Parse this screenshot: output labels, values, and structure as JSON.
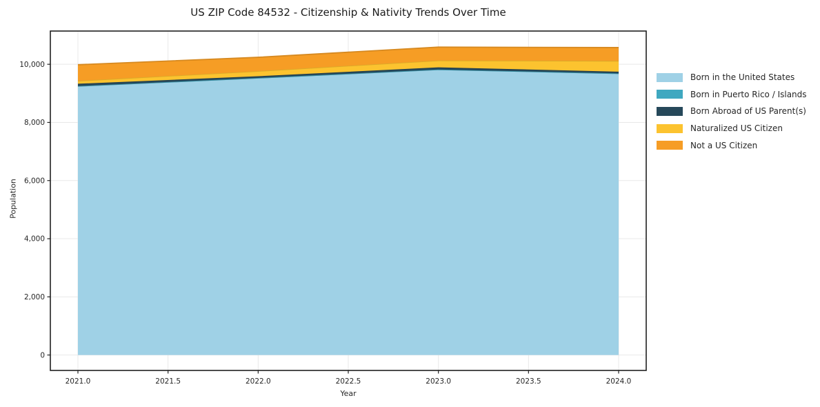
{
  "figure": {
    "background": "#ffffff",
    "text_color": "#262626",
    "spine_color": "#1f1f1f",
    "grid_color": "#e8e8e8"
  },
  "chart_data": {
    "type": "area",
    "stacked": true,
    "grid": true,
    "legend_position": "right",
    "title": "US ZIP Code 84532 - Citizenship & Nativity Trends Over Time",
    "xlabel": "Year",
    "ylabel": "Population",
    "x": [
      2021,
      2022,
      2023,
      2024
    ],
    "series": [
      {
        "name": "Born in the United States",
        "color": "#9fd1e6",
        "values": [
          9250,
          9530,
          9820,
          9685
        ]
      },
      {
        "name": "Born in Puerto Rico / Islands",
        "color": "#3fa8c0",
        "values": [
          0,
          0,
          0,
          0
        ]
      },
      {
        "name": "Born Abroad of US Parent(s)",
        "color": "#26485a",
        "values": [
          80,
          60,
          75,
          60
        ]
      },
      {
        "name": "Naturalized US Citizen",
        "color": "#fcc32f",
        "values": [
          100,
          175,
          235,
          370
        ]
      },
      {
        "name": "Not a US Citizen",
        "color": "#f69d25",
        "values": [
          555,
          475,
          460,
          460
        ]
      }
    ],
    "xlim": [
      2020.847,
      2024.153
    ],
    "ylim": [
      -531,
      11143
    ],
    "xticks": {
      "values": [
        2021.0,
        2021.5,
        2022.0,
        2022.5,
        2023.0,
        2023.5,
        2024.0
      ],
      "labels": [
        "2021.0",
        "2021.5",
        "2022.0",
        "2022.5",
        "2023.0",
        "2023.5",
        "2024.0"
      ]
    },
    "yticks": {
      "values": [
        0,
        2000,
        4000,
        6000,
        8000,
        10000
      ],
      "labels": [
        "0",
        "2,000",
        "4,000",
        "6,000",
        "8,000",
        "10,000"
      ]
    }
  }
}
